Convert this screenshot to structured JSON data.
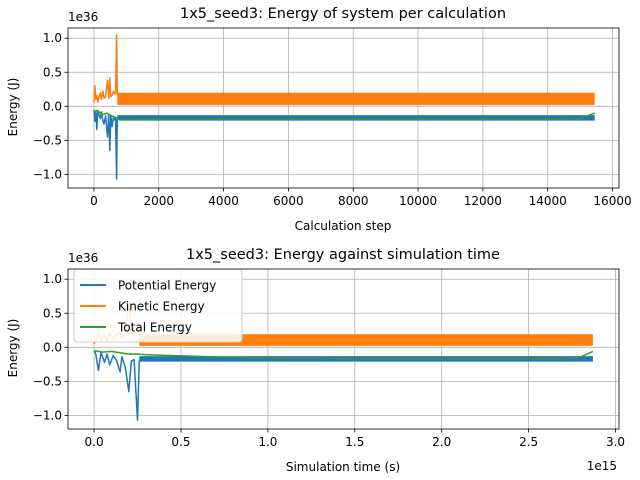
{
  "colors": {
    "potential": "#1f77b4",
    "kinetic": "#ff7f0e",
    "total": "#2ca02c",
    "grid": "#b0b0b0",
    "axes": "#000000"
  },
  "legend": {
    "placement": "top-left",
    "entries": [
      "Potential Energy",
      "Kinetic Energy",
      "Total Energy"
    ]
  },
  "chart_data": [
    {
      "type": "line",
      "title": "1x5_seed3: Energy of system per calculation",
      "xlabel": "Calculation step",
      "ylabel": "Energy (J)",
      "y_scale_label": "1e36",
      "xlim": [
        -800,
        16200
      ],
      "ylim": [
        -1.2,
        1.15
      ],
      "grid": true,
      "xticks": [
        0,
        2000,
        4000,
        6000,
        8000,
        10000,
        12000,
        14000,
        16000
      ],
      "xtick_labels": [
        "0",
        "2000",
        "4000",
        "6000",
        "8000",
        "10000",
        "12000",
        "14000",
        "16000"
      ],
      "yticks": [
        -1.0,
        -0.5,
        0.0,
        0.5,
        1.0
      ],
      "ytick_labels": [
        "−1.0",
        "−0.5",
        "0.0",
        "0.5",
        "1.0"
      ],
      "series": [
        {
          "name": "Potential Energy",
          "x": [
            0,
            30,
            60,
            90,
            120,
            150,
            200,
            230,
            280,
            310,
            360,
            420,
            460,
            490,
            520,
            560,
            600,
            640,
            670,
            700,
            720,
            760,
            800,
            15450
          ],
          "y": [
            -0.05,
            -0.22,
            -0.08,
            -0.34,
            -0.06,
            -0.12,
            -0.18,
            -0.08,
            -0.22,
            -0.26,
            -0.14,
            -0.45,
            -0.12,
            -0.65,
            -0.14,
            -0.3,
            -0.16,
            -0.2,
            -0.18,
            -1.07,
            -0.17,
            -0.19,
            -0.2,
            -0.2
          ],
          "band": [
            -0.2,
            -0.13
          ],
          "band_x": [
            720,
            15450
          ]
        },
        {
          "name": "Kinetic Energy",
          "x": [
            0,
            30,
            60,
            90,
            120,
            150,
            200,
            230,
            280,
            310,
            360,
            420,
            460,
            490,
            520,
            560,
            600,
            640,
            670,
            700,
            720,
            760,
            800,
            15450
          ],
          "y": [
            0.05,
            0.3,
            0.1,
            0.16,
            0.06,
            0.12,
            0.2,
            0.1,
            0.22,
            0.12,
            0.14,
            0.38,
            0.12,
            0.42,
            0.14,
            0.16,
            0.22,
            0.18,
            0.2,
            1.05,
            0.17,
            0.19,
            0.18,
            0.18
          ],
          "band": [
            0.02,
            0.2
          ],
          "band_x": [
            720,
            15450
          ]
        },
        {
          "name": "Total Energy",
          "x": [
            0,
            100,
            200,
            300,
            400,
            500,
            600,
            700,
            800,
            2000,
            6000,
            10000,
            14000,
            15000,
            15450
          ],
          "y": [
            -0.08,
            -0.06,
            -0.1,
            -0.12,
            -0.1,
            -0.13,
            -0.15,
            -0.17,
            -0.2,
            -0.19,
            -0.19,
            -0.19,
            -0.19,
            -0.18,
            -0.1
          ]
        }
      ]
    },
    {
      "type": "line",
      "title": "1x5_seed3: Energy against simulation time",
      "xlabel": "Simulation time (s)",
      "ylabel": "Energy (J)",
      "y_scale_label": "1e36",
      "x_scale_label": "1e15",
      "xlim": [
        -150000000000000.0,
        3020000000000000.0
      ],
      "ylim": [
        -1.2,
        1.15
      ],
      "grid": true,
      "xticks": [
        0,
        500000000000000.0,
        1000000000000000.0,
        1500000000000000.0,
        2000000000000000.0,
        2500000000000000.0,
        3000000000000000.0
      ],
      "xtick_labels": [
        "0.0",
        "0.5",
        "1.0",
        "1.5",
        "2.0",
        "2.5",
        "3.0"
      ],
      "yticks": [
        -1.0,
        -0.5,
        0.0,
        0.5,
        1.0
      ],
      "ytick_labels": [
        "−1.0",
        "−0.5",
        "0.0",
        "0.5",
        "1.0"
      ],
      "series": [
        {
          "name": "Potential Energy",
          "x": [
            0,
            10000000000000.0,
            25000000000000.0,
            40000000000000.0,
            60000000000000.0,
            75000000000000.0,
            90000000000000.0,
            110000000000000.0,
            130000000000000.0,
            150000000000000.0,
            160000000000000.0,
            180000000000000.0,
            200000000000000.0,
            215000000000000.0,
            230000000000000.0,
            250000000000000.0,
            260000000000000.0,
            2870000000000000.0
          ],
          "y": [
            -0.05,
            -0.1,
            -0.34,
            -0.08,
            -0.22,
            -0.1,
            -0.26,
            -0.12,
            -0.2,
            -0.36,
            -0.14,
            -0.3,
            -0.65,
            -0.2,
            -0.18,
            -1.07,
            -0.2,
            -0.2
          ],
          "band": [
            -0.2,
            -0.13
          ],
          "band_x": [
            260000000000000.0,
            2870000000000000.0
          ]
        },
        {
          "name": "Kinetic Energy",
          "x": [
            0,
            10000000000000.0,
            25000000000000.0,
            40000000000000.0,
            60000000000000.0,
            75000000000000.0,
            90000000000000.0,
            110000000000000.0,
            130000000000000.0,
            150000000000000.0,
            160000000000000.0,
            180000000000000.0,
            200000000000000.0,
            215000000000000.0,
            230000000000000.0,
            250000000000000.0,
            260000000000000.0,
            2870000000000000.0
          ],
          "y": [
            0.05,
            0.1,
            0.2,
            0.12,
            0.18,
            0.1,
            0.2,
            0.14,
            0.18,
            0.22,
            0.14,
            0.3,
            0.6,
            0.2,
            0.18,
            0.3,
            0.18,
            0.18
          ],
          "band": [
            0.02,
            0.18
          ],
          "band_x": [
            260000000000000.0,
            2870000000000000.0
          ]
        },
        {
          "name": "Total Energy",
          "x": [
            0,
            50000000000000.0,
            100000000000000.0,
            150000000000000.0,
            200000000000000.0,
            250000000000000.0,
            300000000000000.0,
            800000000000000.0,
            1500000000000000.0,
            2200000000000000.0,
            2700000000000000.0,
            2800000000000000.0,
            2870000000000000.0
          ],
          "y": [
            -0.05,
            -0.07,
            -0.06,
            -0.08,
            -0.1,
            -0.1,
            -0.11,
            -0.15,
            -0.17,
            -0.17,
            -0.17,
            -0.14,
            -0.06
          ]
        }
      ]
    }
  ]
}
